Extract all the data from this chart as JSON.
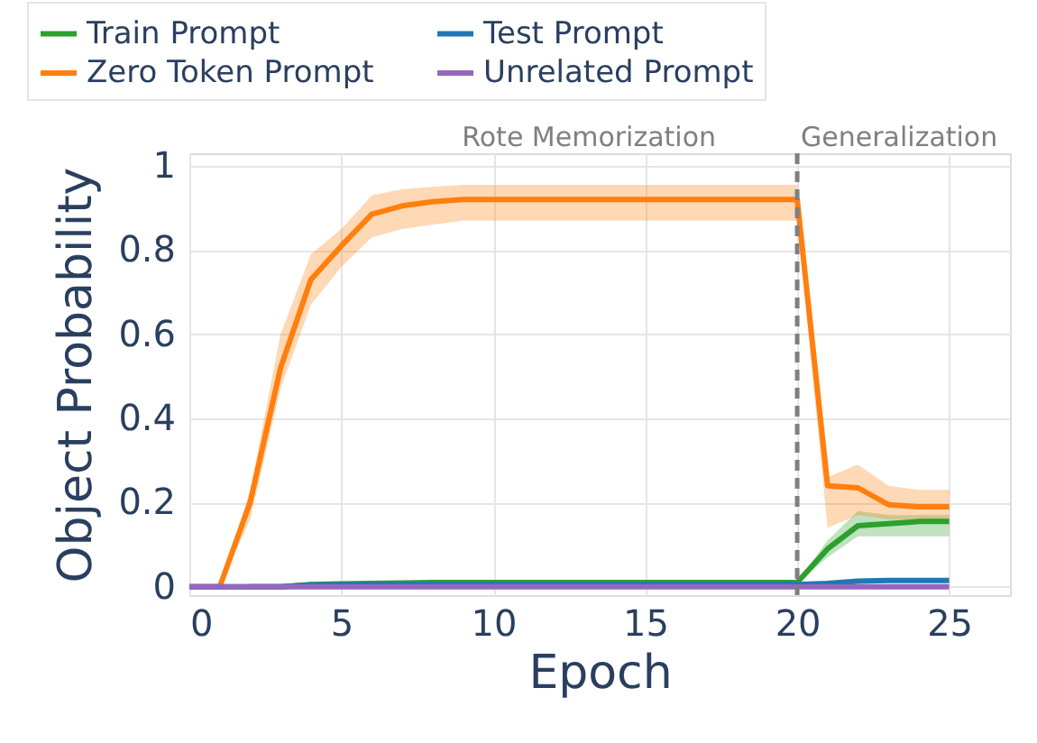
{
  "chart_data": {
    "type": "line",
    "xlabel": "Epoch",
    "ylabel": "Object Probability",
    "x": [
      0,
      1,
      2,
      3,
      4,
      5,
      6,
      7,
      8,
      9,
      10,
      11,
      12,
      13,
      14,
      15,
      16,
      17,
      18,
      19,
      20,
      21,
      22,
      23,
      24,
      25
    ],
    "series": [
      {
        "name": "Train Prompt",
        "color": "#2ca02c",
        "values": [
          null,
          null,
          0,
          0,
          0.005,
          0.007,
          0.008,
          0.009,
          0.01,
          0.01,
          0.01,
          0.01,
          0.01,
          0.01,
          0.01,
          0.01,
          0.01,
          0.01,
          0.01,
          0.01,
          0.01,
          0.09,
          0.145,
          0.15,
          0.155,
          0.155
        ],
        "lower": [
          null,
          null,
          0,
          0,
          0.003,
          0.005,
          0.006,
          0.007,
          0.008,
          0.008,
          0.008,
          0.008,
          0.008,
          0.008,
          0.008,
          0.008,
          0.008,
          0.008,
          0.008,
          0.008,
          0.008,
          0.07,
          0.12,
          0.12,
          0.12,
          0.12
        ],
        "upper": [
          null,
          null,
          0,
          0,
          0.007,
          0.009,
          0.01,
          0.011,
          0.012,
          0.012,
          0.012,
          0.012,
          0.012,
          0.012,
          0.012,
          0.012,
          0.012,
          0.012,
          0.012,
          0.012,
          0.012,
          0.11,
          0.18,
          0.17,
          0.17,
          0.17
        ]
      },
      {
        "name": "Zero Token Prompt",
        "color": "#ff7f0e",
        "values": [
          0,
          0,
          0.2,
          0.52,
          0.73,
          0.81,
          0.885,
          0.905,
          0.915,
          0.92,
          0.92,
          0.92,
          0.92,
          0.92,
          0.92,
          0.92,
          0.92,
          0.92,
          0.92,
          0.92,
          0.92,
          0.24,
          0.235,
          0.195,
          0.19,
          0.19
        ],
        "lower": [
          0,
          0,
          0.16,
          0.47,
          0.67,
          0.76,
          0.83,
          0.85,
          0.86,
          0.87,
          0.87,
          0.87,
          0.87,
          0.87,
          0.87,
          0.87,
          0.87,
          0.87,
          0.87,
          0.87,
          0.87,
          0.14,
          0.17,
          0.16,
          0.16,
          0.16
        ],
        "upper": [
          0,
          0,
          0.23,
          0.6,
          0.79,
          0.85,
          0.93,
          0.945,
          0.95,
          0.955,
          0.955,
          0.955,
          0.955,
          0.955,
          0.955,
          0.955,
          0.955,
          0.955,
          0.955,
          0.955,
          0.955,
          0.26,
          0.29,
          0.24,
          0.23,
          0.23
        ]
      },
      {
        "name": "Test Prompt",
        "color": "#1f77b4",
        "values": [
          0,
          0,
          0,
          0,
          0.004,
          0.005,
          0.005,
          0.005,
          0.005,
          0.005,
          0.005,
          0.005,
          0.005,
          0.005,
          0.005,
          0.005,
          0.005,
          0.005,
          0.005,
          0.005,
          0.005,
          0.008,
          0.013,
          0.015,
          0.015,
          0.015
        ]
      },
      {
        "name": "Unrelated Prompt",
        "color": "#9467bd",
        "values": [
          0,
          0,
          0,
          0,
          0,
          0,
          0,
          0,
          0,
          0,
          0,
          0,
          0,
          0,
          0,
          0,
          0,
          0,
          0,
          0,
          0,
          0,
          0,
          0,
          0,
          0
        ]
      }
    ],
    "xlim": [
      0,
      27
    ],
    "xticks": [
      0,
      5,
      10,
      15,
      20,
      25
    ],
    "ylim": [
      -0.02,
      1.03
    ],
    "yticks": [
      0,
      0.2,
      0.4,
      0.6,
      0.8,
      1
    ],
    "ref_lines": [
      {
        "axis": "x",
        "value": 20,
        "color": "#7f7f7f",
        "line_style": "dashed"
      }
    ],
    "annotations": [
      "Rote Memorization",
      "Generalization"
    ],
    "grid": true,
    "legend": "top",
    "line_style": "solid",
    "marker": "none"
  }
}
